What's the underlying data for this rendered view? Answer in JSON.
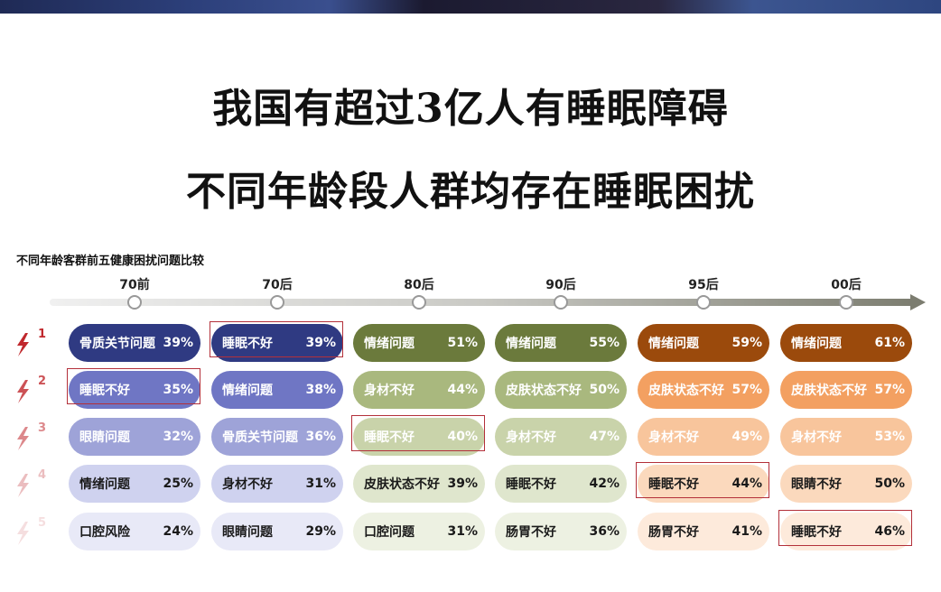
{
  "header": {
    "title_line1": "我国有超过3亿人有睡眠障碍",
    "title_line2": "不同年龄段人群均存在睡眠困扰"
  },
  "chart_data": {
    "type": "table",
    "title": "不同年龄客群前五健康困扰问题比较",
    "ranks": [
      "1",
      "2",
      "3",
      "4",
      "5"
    ],
    "categories": [
      "70前",
      "70后",
      "80后",
      "90后",
      "95后",
      "00后"
    ],
    "series": [
      {
        "name": "70前",
        "color_scale": [
          "#2f3a82",
          "#6f76c4",
          "#9ea3d8",
          "#cfd2ef",
          "#e8e9f7"
        ],
        "items": [
          {
            "label": "骨质关节问题",
            "value": 39
          },
          {
            "label": "睡眠不好",
            "value": 35,
            "highlight": true
          },
          {
            "label": "眼睛问题",
            "value": 32
          },
          {
            "label": "情绪问题",
            "value": 25
          },
          {
            "label": "口腔风险",
            "value": 24
          }
        ]
      },
      {
        "name": "70后",
        "color_scale": [
          "#2f3a82",
          "#6f76c4",
          "#9ea3d8",
          "#cfd2ef",
          "#e8e9f7"
        ],
        "items": [
          {
            "label": "睡眠不好",
            "value": 39,
            "highlight": true
          },
          {
            "label": "情绪问题",
            "value": 38
          },
          {
            "label": "骨质关节问题",
            "value": 36
          },
          {
            "label": "身材不好",
            "value": 31
          },
          {
            "label": "眼睛问题",
            "value": 29
          }
        ]
      },
      {
        "name": "80后",
        "color_scale": [
          "#6b7a3c",
          "#a9b87e",
          "#c9d3aa",
          "#dfe6cd",
          "#edf1e2"
        ],
        "items": [
          {
            "label": "情绪问题",
            "value": 51
          },
          {
            "label": "身材不好",
            "value": 44
          },
          {
            "label": "睡眠不好",
            "value": 40,
            "highlight": true
          },
          {
            "label": "皮肤状态不好",
            "value": 39
          },
          {
            "label": "口腔问题",
            "value": 31
          }
        ]
      },
      {
        "name": "90后",
        "color_scale": [
          "#6b7a3c",
          "#a9b87e",
          "#c9d3aa",
          "#dfe6cd",
          "#edf1e2"
        ],
        "items": [
          {
            "label": "情绪问题",
            "value": 55
          },
          {
            "label": "皮肤状态不好",
            "value": 50
          },
          {
            "label": "身材不好",
            "value": 47
          },
          {
            "label": "睡眠不好",
            "value": 42
          },
          {
            "label": "肠胃不好",
            "value": 36
          }
        ]
      },
      {
        "name": "95后",
        "color_scale": [
          "#9b4a0c",
          "#f3a061",
          "#f8c59c",
          "#fbd9bd",
          "#fdeadb"
        ],
        "items": [
          {
            "label": "情绪问题",
            "value": 59
          },
          {
            "label": "皮肤状态不好",
            "value": 57
          },
          {
            "label": "身材不好",
            "value": 49
          },
          {
            "label": "睡眠不好",
            "value": 44,
            "highlight": true
          },
          {
            "label": "肠胃不好",
            "value": 41
          }
        ]
      },
      {
        "name": "00后",
        "color_scale": [
          "#9b4a0c",
          "#f3a061",
          "#f8c59c",
          "#fbd9bd",
          "#fdeadb"
        ],
        "items": [
          {
            "label": "情绪问题",
            "value": 61
          },
          {
            "label": "皮肤状态不好",
            "value": 57
          },
          {
            "label": "身材不好",
            "value": 53
          },
          {
            "label": "眼睛不好",
            "value": 50
          },
          {
            "label": "睡眠不好",
            "value": 46,
            "highlight": true
          }
        ]
      }
    ],
    "text_color_light": "#ffffff",
    "text_color_dark": "#1a1a1a",
    "highlight_color": "#b3303a"
  }
}
